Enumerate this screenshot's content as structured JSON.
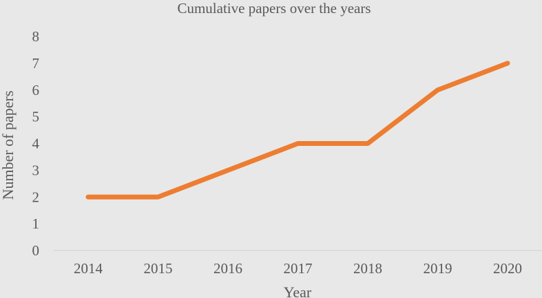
{
  "chart_data": {
    "type": "line",
    "title": "Cumulative papers over the years",
    "xlabel": "Year",
    "ylabel": "Number of papers",
    "categories": [
      "2014",
      "2015",
      "2016",
      "2017",
      "2018",
      "2019",
      "2020"
    ],
    "series": [
      {
        "values": [
          2,
          2,
          3,
          4,
          4,
          6,
          7
        ],
        "color": "#ed7d31"
      }
    ],
    "ylim": [
      0,
      8
    ],
    "yticks": [
      "0",
      "1",
      "2",
      "3",
      "4",
      "5",
      "6",
      "7",
      "8"
    ],
    "grid": false,
    "legend": "none",
    "background_color": "#e8e8e8",
    "text_color": "#595959"
  }
}
